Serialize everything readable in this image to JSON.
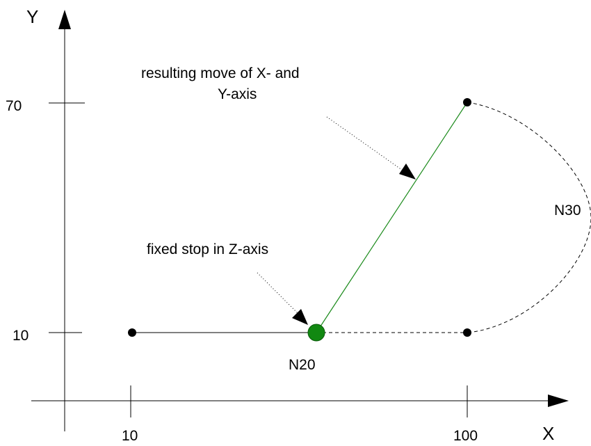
{
  "axes": {
    "x_label": "X",
    "y_label": "Y",
    "x_ticks": [
      "10",
      "100"
    ],
    "y_ticks": [
      "70",
      "10"
    ]
  },
  "annotations": {
    "move_line1": "resulting move of X- and",
    "move_line2": "Y-axis",
    "fixed_stop": "fixed stop in Z-axis"
  },
  "block_labels": {
    "n20": "N20",
    "n30": "N30"
  },
  "colors": {
    "path": "#000000",
    "resulting_move": "#1a8a1a",
    "fixed_stop_point": "#118811"
  }
}
